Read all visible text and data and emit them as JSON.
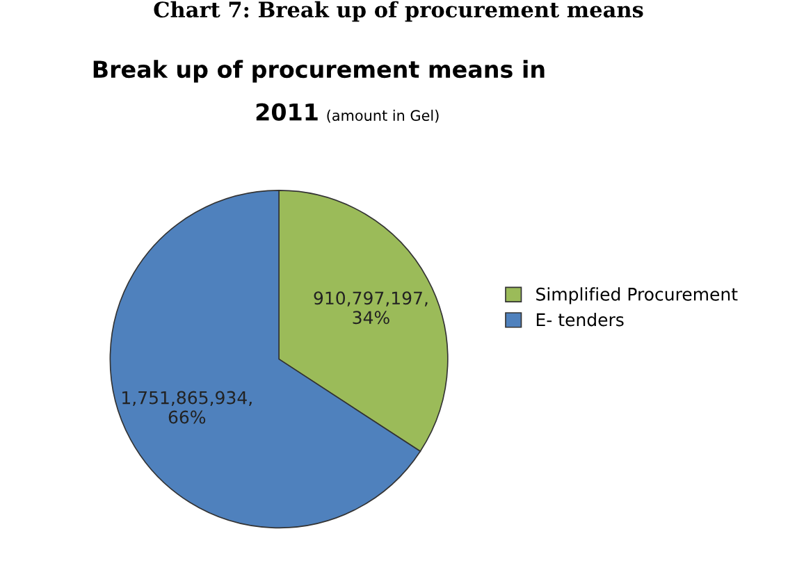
{
  "chart_data": {
    "type": "pie",
    "title": "Break up of procurement means in\n2011",
    "subtitle": "(amount in Gel)",
    "annotations": [
      "Chart 7: Break up of procurement means"
    ],
    "categories": [
      "Simplified Procurement",
      "E- tenders"
    ],
    "values": [
      910797197,
      1751865934
    ],
    "colors": [
      "#9bbb59",
      "#4f81bd"
    ],
    "value_labels": [
      "910,797,197,\n34%",
      "1,751,865,934,\n66%"
    ],
    "legend": "right"
  }
}
